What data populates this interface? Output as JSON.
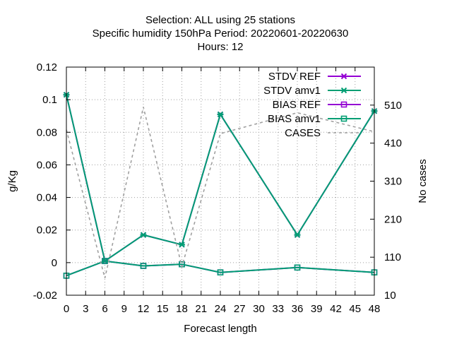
{
  "title_lines": [
    "Selection: ALL using    25 stations",
    "Specific humidity 150hPa   Period: 20220601-20220630",
    "Hours:  12"
  ],
  "chart_data": {
    "type": "line",
    "xlabel": "Forecast length",
    "ylabel": "g/Kg",
    "y2label": "No cases",
    "xlim": [
      0,
      48
    ],
    "ylim": [
      -0.02,
      0.12
    ],
    "y2lim": [
      10,
      610
    ],
    "x_ticks": [
      0,
      3,
      6,
      9,
      12,
      15,
      18,
      21,
      24,
      27,
      30,
      33,
      36,
      39,
      42,
      45,
      48
    ],
    "y_ticks": [
      "-0.02",
      "0",
      "0.02",
      "0.04",
      "0.06",
      "0.08",
      "0.1",
      "0.12"
    ],
    "y2_ticks": [
      10,
      110,
      210,
      310,
      410,
      510
    ],
    "grid": true,
    "legend_position": "top-right",
    "colors": {
      "ref": "#9400d3",
      "exp": "#009e73",
      "cases": "#a0a0a0"
    },
    "series": [
      {
        "name": "STDV REF",
        "axis": "y",
        "marker": "cross",
        "x": [
          0,
          6,
          12,
          18,
          24,
          36,
          48
        ],
        "values": [
          0.103,
          0.001,
          0.017,
          0.011,
          0.091,
          0.017,
          0.093
        ]
      },
      {
        "name": "STDV amv1",
        "axis": "y",
        "marker": "cross",
        "x": [
          0,
          6,
          12,
          18,
          24,
          36,
          48
        ],
        "values": [
          0.103,
          0.001,
          0.017,
          0.011,
          0.091,
          0.017,
          0.093
        ]
      },
      {
        "name": "BIAS REF",
        "axis": "y",
        "marker": "square",
        "x": [
          0,
          6,
          12,
          18,
          24,
          36,
          48
        ],
        "values": [
          -0.008,
          0.001,
          -0.002,
          -0.001,
          -0.006,
          -0.003,
          -0.006
        ]
      },
      {
        "name": "BIAS amv1",
        "axis": "y",
        "marker": "square",
        "x": [
          0,
          6,
          12,
          18,
          24,
          36,
          48
        ],
        "values": [
          -0.008,
          0.001,
          -0.002,
          -0.001,
          -0.006,
          -0.003,
          -0.006
        ]
      },
      {
        "name": "CASES",
        "axis": "y2",
        "marker": "none",
        "x": [
          0,
          6,
          12,
          18,
          24,
          36,
          48
        ],
        "values": [
          445,
          55,
          505,
          85,
          435,
          490,
          440
        ]
      }
    ]
  }
}
